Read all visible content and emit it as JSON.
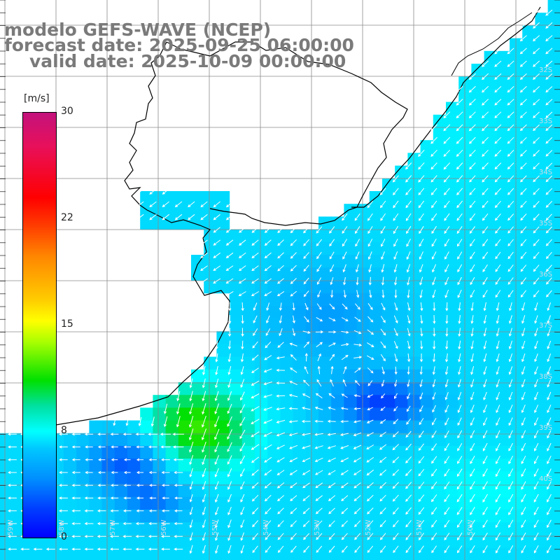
{
  "header": {
    "line1": "modelo GEFS-WAVE (NCEP)",
    "line2": "forecast date: 2025-09-25 06:00:00",
    "line3": "valid date: 2025-10-09 00:00:00"
  },
  "colorbar": {
    "units": "[m/s]",
    "min": 0,
    "max": 30,
    "tick_labels": [
      "30",
      "22",
      "15",
      "8",
      "0"
    ],
    "tick_values": [
      30,
      22,
      15,
      8,
      0
    ]
  },
  "lat_labels": [
    "32S",
    "33S",
    "34S",
    "35S",
    "36S",
    "37S",
    "38S",
    "39S",
    "40S"
  ],
  "lon_labels": [
    "59W",
    "58W",
    "57W",
    "56W",
    "55W",
    "54W",
    "53W",
    "52W",
    "51W",
    "50W"
  ],
  "map_data": {
    "field": "10 m wind speed and direction",
    "units": "m/s",
    "lat_range": [
      "30S",
      "41S"
    ],
    "lon_range": [
      "60W",
      "49W"
    ],
    "grid": true,
    "features": [
      "Rio de la Plata estuary",
      "Uruguay coastline",
      "Southern Brazil coastline",
      "Argentina coastline (Buenos Aires province)"
    ],
    "max_wind_region": {
      "location": "off Bahia Samborombon",
      "approx_speed": 12
    },
    "min_wind_regions": [
      {
        "location": "near 38.5S 52.5W",
        "approx_speed": 2
      },
      {
        "location": "near 40S 57.5W",
        "approx_speed": 2
      }
    ],
    "colors": {
      "high": "#00e000",
      "mid": "#00ffff",
      "low": "#0000ff"
    }
  }
}
